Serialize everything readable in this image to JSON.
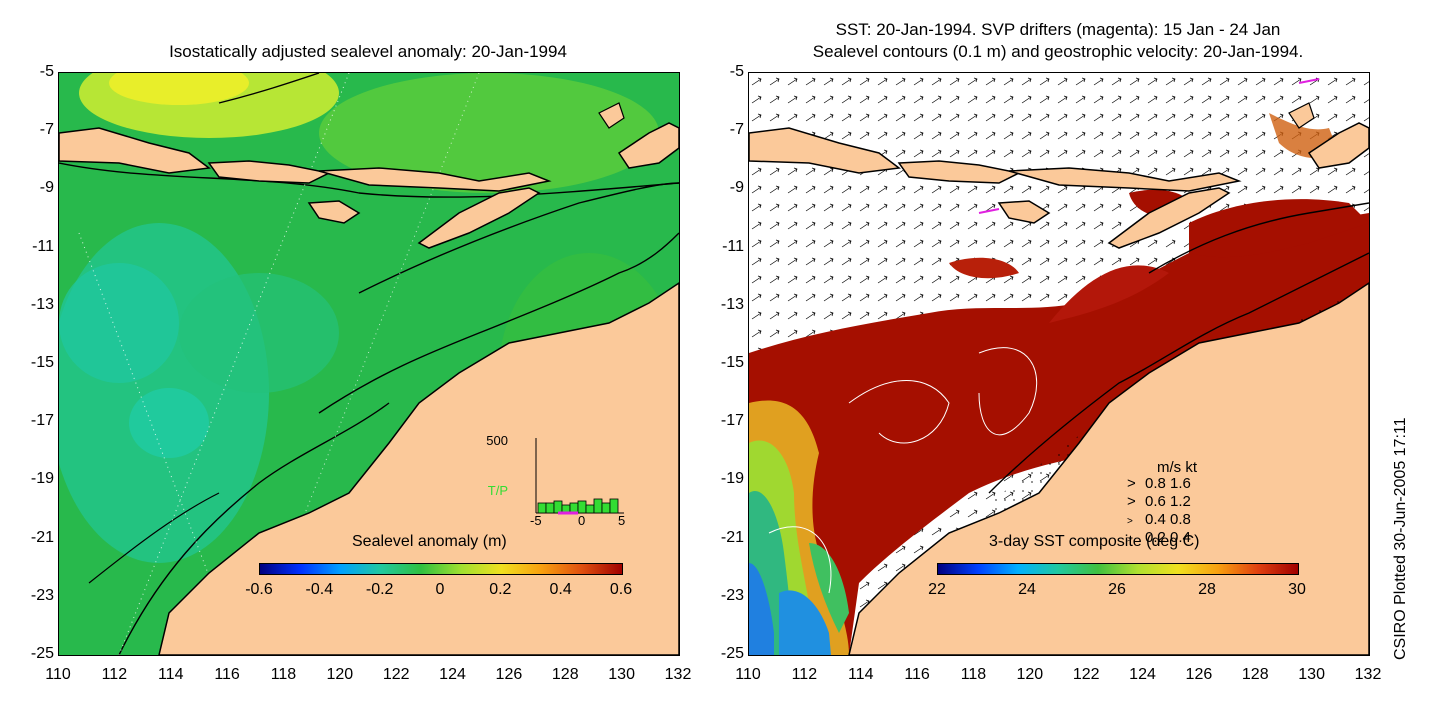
{
  "left": {
    "title": "Isostatically adjusted sealevel anomaly: 20-Jan-1994",
    "colorbar": {
      "label": "Sealevel anomaly (m)",
      "ticks": [
        "-0.6",
        "-0.4",
        "-0.2",
        "0",
        "0.2",
        "0.4",
        "0.6"
      ]
    },
    "inset": {
      "ymax_label": "500",
      "series_label": "T/P",
      "x_ticks": [
        "-5",
        "0",
        "5"
      ]
    }
  },
  "right": {
    "title_line1": "SST: 20-Jan-1994. SVP drifters (magenta): 15 Jan - 24 Jan",
    "title_line2": "Sealevel contours (0.1 m) and geostrophic velocity: 20-Jan-1994.",
    "colorbar": {
      "label": "3-day SST composite (deg C)",
      "ticks": [
        "22",
        "24",
        "26",
        "28",
        "30"
      ]
    },
    "velocity_legend": {
      "header": "m/s  kt",
      "rows": [
        "0.8  1.6",
        "0.6  1.2",
        "0.4  0.8",
        "0.2  0.4"
      ]
    }
  },
  "axes": {
    "y_ticks": [
      "-5",
      "-7",
      "-9",
      "-11",
      "-13",
      "-15",
      "-17",
      "-19",
      "-21",
      "-23",
      "-25"
    ],
    "x_ticks": [
      "110",
      "112",
      "114",
      "116",
      "118",
      "120",
      "122",
      "124",
      "126",
      "128",
      "130",
      "132"
    ]
  },
  "footer": {
    "plotted": "CSIRO Plotted 30-Jun-2005 17:11"
  },
  "colors": {
    "land": "#fbc99a",
    "sea_green": "#22b84a",
    "sst_warm": "#a50f00"
  }
}
